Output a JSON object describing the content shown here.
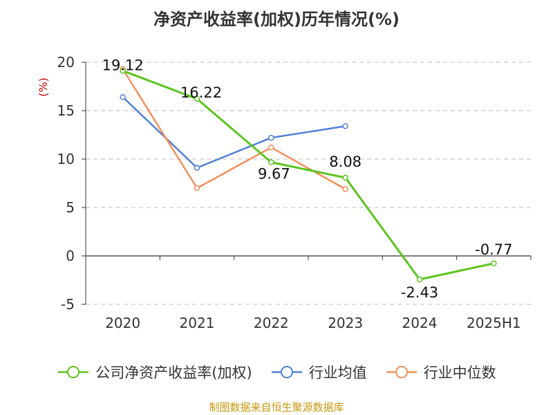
{
  "chart_data": {
    "type": "line",
    "title": "净资产收益率(加权)历年情况(%)",
    "ylabel": "(%)",
    "categories": [
      "2020",
      "2021",
      "2022",
      "2023",
      "2024",
      "2025H1"
    ],
    "ylim": [
      -5,
      20
    ],
    "yticks": [
      -5,
      0,
      5,
      10,
      15,
      20
    ],
    "grid": true,
    "legend_position": "bottom",
    "series": [
      {
        "name": "公司净资产收益率(加权)",
        "color": "#5cc41c",
        "values": [
          19.12,
          16.22,
          9.67,
          8.08,
          -2.43,
          -0.77
        ],
        "labels": [
          "19.12",
          "16.22",
          "9.67",
          "8.08",
          "-2.43",
          "-0.77"
        ]
      },
      {
        "name": "行业均值",
        "color": "#4e7fd6",
        "values": [
          16.4,
          9.1,
          12.2,
          13.4,
          null,
          null
        ]
      },
      {
        "name": "行业中位数",
        "color": "#f58f5a",
        "values": [
          19.3,
          7.0,
          11.2,
          6.9,
          null,
          null
        ]
      }
    ]
  },
  "source_note": "制图数据来自恒生聚源数据库"
}
